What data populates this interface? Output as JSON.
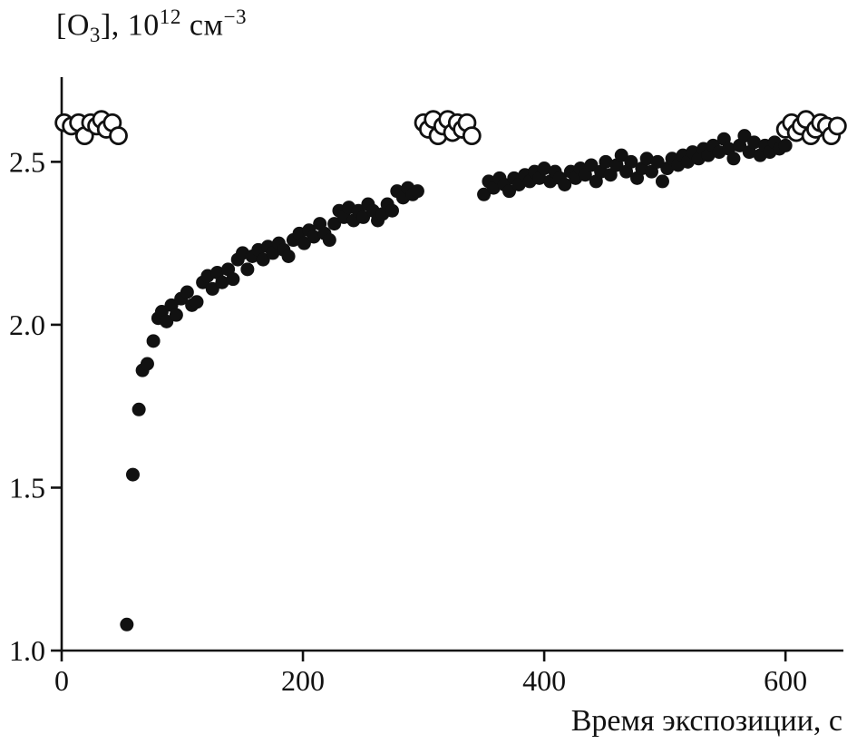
{
  "figure": {
    "ylabel_parts": {
      "pre": "[O",
      "sub": "3",
      "mid": "], 10",
      "sup_exp": "12",
      "unit": " см",
      "sup_neg": "−3"
    },
    "xlabel": "Время экспозиции, с",
    "axis_color": "#111111",
    "marker_fill": "#111111",
    "open_marker_fill": "#ffffff"
  },
  "chart_data": {
    "type": "scatter",
    "title": "",
    "ylabel": "[O3], 10^12 см^-3",
    "xlabel": "Время экспозиции, с",
    "xlim": [
      0,
      648
    ],
    "ylim": [
      1.0,
      2.76
    ],
    "grid": false,
    "legend": "none",
    "x_tick_values": [
      0,
      200,
      400,
      600
    ],
    "x_tick_labels": [
      "0",
      "200",
      "400",
      "600"
    ],
    "y_tick_values": [
      1.0,
      1.5,
      2.0,
      2.5
    ],
    "y_tick_labels": [
      "1.0",
      "1.5",
      "2.0",
      "2.5"
    ],
    "series": [
      {
        "name": "ozone-exposure-filled",
        "marker": "filled-circle",
        "points": [
          [
            54,
            1.08
          ],
          [
            59,
            1.54
          ],
          [
            64,
            1.74
          ],
          [
            67,
            1.86
          ],
          [
            71,
            1.88
          ],
          [
            76,
            1.95
          ],
          [
            80,
            2.02
          ],
          [
            83,
            2.04
          ],
          [
            87,
            2.01
          ],
          [
            91,
            2.06
          ],
          [
            95,
            2.03
          ],
          [
            99,
            2.08
          ],
          [
            104,
            2.1
          ],
          [
            108,
            2.06
          ],
          [
            112,
            2.07
          ],
          [
            117,
            2.13
          ],
          [
            121,
            2.15
          ],
          [
            125,
            2.11
          ],
          [
            129,
            2.16
          ],
          [
            133,
            2.13
          ],
          [
            138,
            2.17
          ],
          [
            142,
            2.14
          ],
          [
            146,
            2.2
          ],
          [
            150,
            2.22
          ],
          [
            154,
            2.17
          ],
          [
            158,
            2.21
          ],
          [
            163,
            2.23
          ],
          [
            167,
            2.2
          ],
          [
            171,
            2.24
          ],
          [
            175,
            2.22
          ],
          [
            180,
            2.25
          ],
          [
            184,
            2.23
          ],
          [
            188,
            2.21
          ],
          [
            192,
            2.26
          ],
          [
            197,
            2.28
          ],
          [
            201,
            2.25
          ],
          [
            205,
            2.29
          ],
          [
            209,
            2.27
          ],
          [
            214,
            2.31
          ],
          [
            218,
            2.28
          ],
          [
            222,
            2.26
          ],
          [
            226,
            2.31
          ],
          [
            230,
            2.35
          ],
          [
            234,
            2.33
          ],
          [
            238,
            2.36
          ],
          [
            242,
            2.32
          ],
          [
            246,
            2.35
          ],
          [
            250,
            2.33
          ],
          [
            254,
            2.37
          ],
          [
            258,
            2.35
          ],
          [
            262,
            2.32
          ],
          [
            266,
            2.34
          ],
          [
            270,
            2.37
          ],
          [
            274,
            2.35
          ],
          [
            278,
            2.41
          ],
          [
            283,
            2.39
          ],
          [
            287,
            2.42
          ],
          [
            291,
            2.4
          ],
          [
            295,
            2.41
          ],
          [
            350,
            2.4
          ],
          [
            354,
            2.44
          ],
          [
            358,
            2.42
          ],
          [
            363,
            2.45
          ],
          [
            367,
            2.43
          ],
          [
            371,
            2.41
          ],
          [
            375,
            2.45
          ],
          [
            379,
            2.43
          ],
          [
            384,
            2.46
          ],
          [
            388,
            2.44
          ],
          [
            392,
            2.47
          ],
          [
            396,
            2.45
          ],
          [
            400,
            2.48
          ],
          [
            405,
            2.44
          ],
          [
            409,
            2.47
          ],
          [
            413,
            2.45
          ],
          [
            417,
            2.43
          ],
          [
            422,
            2.47
          ],
          [
            426,
            2.45
          ],
          [
            430,
            2.48
          ],
          [
            434,
            2.46
          ],
          [
            439,
            2.49
          ],
          [
            443,
            2.44
          ],
          [
            447,
            2.47
          ],
          [
            451,
            2.5
          ],
          [
            455,
            2.46
          ],
          [
            460,
            2.49
          ],
          [
            464,
            2.52
          ],
          [
            468,
            2.47
          ],
          [
            472,
            2.5
          ],
          [
            477,
            2.45
          ],
          [
            481,
            2.48
          ],
          [
            485,
            2.51
          ],
          [
            489,
            2.47
          ],
          [
            494,
            2.5
          ],
          [
            498,
            2.44
          ],
          [
            502,
            2.48
          ],
          [
            506,
            2.51
          ],
          [
            511,
            2.49
          ],
          [
            515,
            2.52
          ],
          [
            519,
            2.5
          ],
          [
            523,
            2.53
          ],
          [
            528,
            2.51
          ],
          [
            532,
            2.54
          ],
          [
            536,
            2.52
          ],
          [
            540,
            2.55
          ],
          [
            545,
            2.53
          ],
          [
            549,
            2.57
          ],
          [
            553,
            2.54
          ],
          [
            557,
            2.51
          ],
          [
            562,
            2.55
          ],
          [
            566,
            2.58
          ],
          [
            570,
            2.53
          ],
          [
            574,
            2.56
          ],
          [
            579,
            2.52
          ],
          [
            583,
            2.55
          ],
          [
            587,
            2.53
          ],
          [
            591,
            2.56
          ],
          [
            595,
            2.54
          ],
          [
            600,
            2.55
          ]
        ]
      },
      {
        "name": "ozone-reference-open",
        "marker": "open-circle",
        "points": [
          [
            2,
            2.62
          ],
          [
            8,
            2.61
          ],
          [
            14,
            2.62
          ],
          [
            19,
            2.58
          ],
          [
            24,
            2.62
          ],
          [
            29,
            2.61
          ],
          [
            33,
            2.63
          ],
          [
            37,
            2.6
          ],
          [
            42,
            2.62
          ],
          [
            47,
            2.58
          ],
          [
            300,
            2.62
          ],
          [
            304,
            2.6
          ],
          [
            308,
            2.63
          ],
          [
            312,
            2.58
          ],
          [
            316,
            2.61
          ],
          [
            320,
            2.63
          ],
          [
            324,
            2.59
          ],
          [
            328,
            2.62
          ],
          [
            332,
            2.6
          ],
          [
            336,
            2.62
          ],
          [
            340,
            2.58
          ],
          [
            600,
            2.6
          ],
          [
            605,
            2.62
          ],
          [
            609,
            2.59
          ],
          [
            613,
            2.61
          ],
          [
            617,
            2.63
          ],
          [
            621,
            2.58
          ],
          [
            625,
            2.6
          ],
          [
            629,
            2.62
          ],
          [
            634,
            2.61
          ],
          [
            638,
            2.58
          ],
          [
            643,
            2.61
          ]
        ]
      }
    ]
  }
}
